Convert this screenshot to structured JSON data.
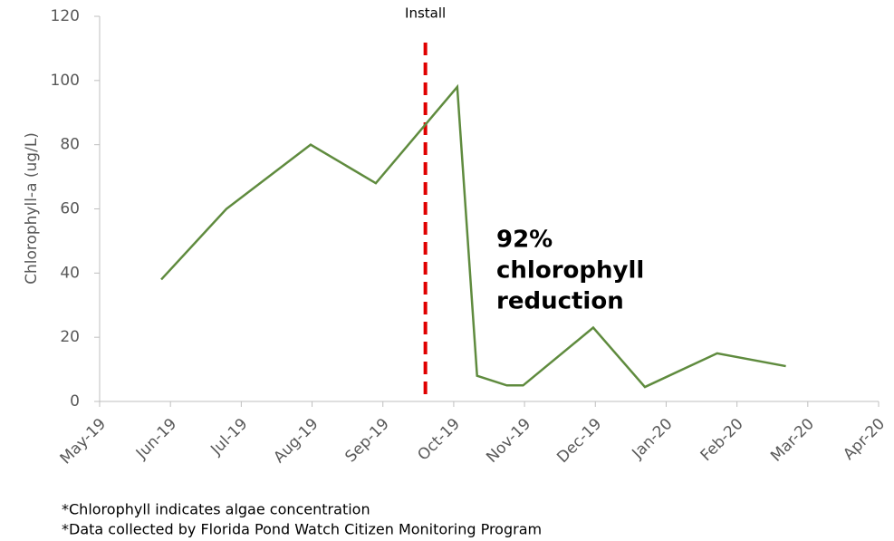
{
  "chart_data": {
    "type": "line",
    "ylabel": "Chlorophyll-a (ug/L)",
    "x": [
      0.87,
      1.79,
      2.98,
      3.9,
      5.05,
      5.33,
      5.75,
      5.98,
      6.97,
      7.7,
      8.72,
      9.69
    ],
    "series": [
      {
        "name": "Chlorophyll-a",
        "color": "#5f8b3e",
        "values": [
          38,
          60,
          80,
          68,
          98,
          8,
          5,
          5,
          23,
          4.5,
          15,
          11
        ]
      }
    ],
    "xlim": [
      0,
      11
    ],
    "xticks": [
      {
        "value": 0,
        "label": "May-19"
      },
      {
        "value": 1,
        "label": "Jun-19"
      },
      {
        "value": 2,
        "label": "Jul-19"
      },
      {
        "value": 3,
        "label": "Aug-19"
      },
      {
        "value": 4,
        "label": "Sep-19"
      },
      {
        "value": 5,
        "label": "Oct-19"
      },
      {
        "value": 6,
        "label": "Nov-19"
      },
      {
        "value": 7,
        "label": "Dec-19"
      },
      {
        "value": 8,
        "label": "Jan-20"
      },
      {
        "value": 9,
        "label": "Feb-20"
      },
      {
        "value": 10,
        "label": "Mar-20"
      },
      {
        "value": 11,
        "label": "Apr-20"
      }
    ],
    "ylim": [
      0,
      120
    ],
    "yticks": [
      0,
      20,
      40,
      60,
      80,
      100,
      120
    ],
    "install": {
      "x": 4.6,
      "label": "Install",
      "color": "#e00000"
    },
    "annotation": [
      "92%",
      "chlorophyll",
      "reduction"
    ],
    "footnotes": [
      "*Chlorophyll indicates algae concentration",
      "*Data collected by Florida Pond Watch Citizen Monitoring Program"
    ]
  }
}
